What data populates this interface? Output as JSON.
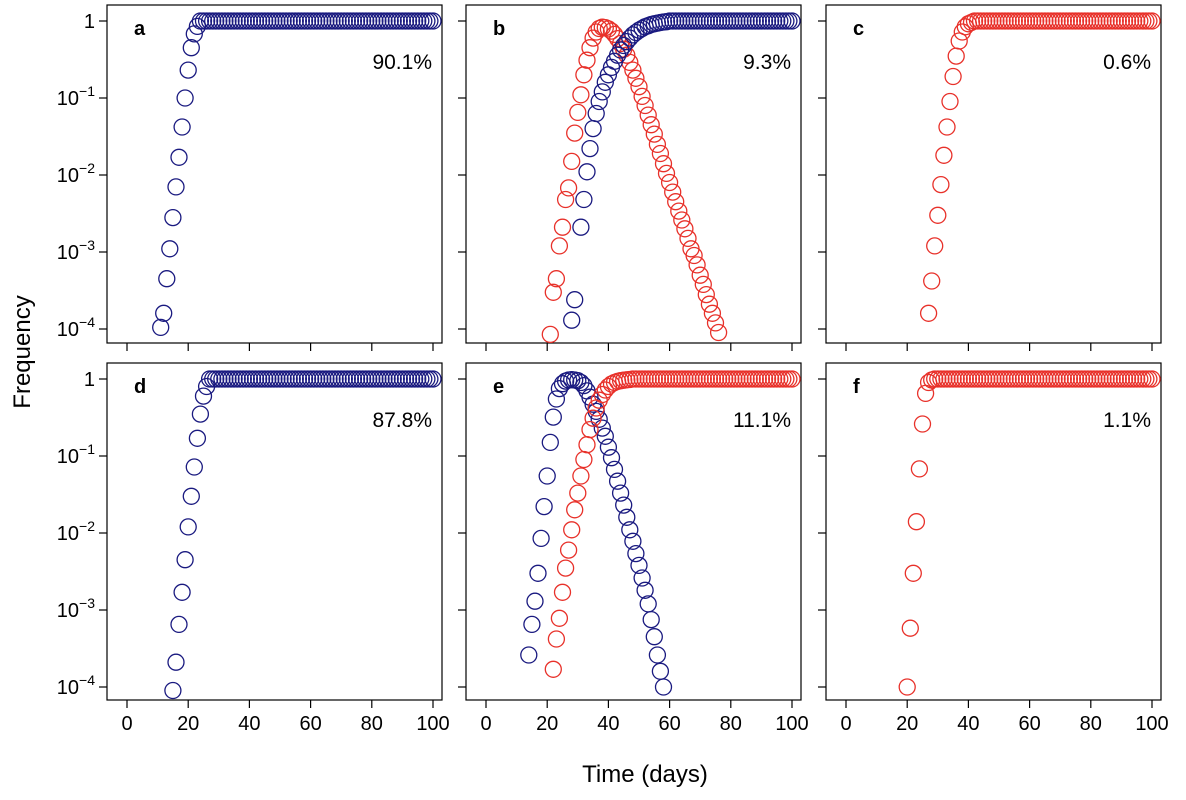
{
  "figure": {
    "xlabel": "Time (days)",
    "ylabel": "Frequency",
    "ytick_labels": [
      {
        "base": "1",
        "exp": ""
      },
      {
        "base": "10",
        "exp": "−1"
      },
      {
        "base": "10",
        "exp": "−2"
      },
      {
        "base": "10",
        "exp": "−3"
      },
      {
        "base": "10",
        "exp": "−4"
      }
    ],
    "xtick_labels": [
      "0",
      "20",
      "40",
      "60",
      "80",
      "100"
    ],
    "colors": {
      "blue": "#1a1a80",
      "red": "#e8312a"
    }
  },
  "chart_data": [
    {
      "type": "scatter",
      "panel": "a",
      "annotation": "90.1%",
      "yscale": "log",
      "xlim": [
        0,
        100
      ],
      "ylim": [
        0.0001,
        1
      ],
      "grid": false,
      "series": [
        {
          "color": "#1a1a80",
          "points": [
            [
              11,
              0.000105
            ],
            [
              12,
              0.00016
            ],
            [
              13,
              0.00045
            ],
            [
              14,
              0.0011
            ],
            [
              15,
              0.0028
            ],
            [
              16,
              0.007
            ],
            [
              17,
              0.017
            ],
            [
              18,
              0.042
            ],
            [
              19,
              0.1
            ],
            [
              20,
              0.23
            ],
            [
              21,
              0.45
            ],
            [
              22,
              0.68
            ],
            [
              23,
              0.85
            ]
          ],
          "plateau": {
            "from": 24,
            "to": 100,
            "value": 1
          }
        }
      ]
    },
    {
      "type": "scatter",
      "panel": "b",
      "annotation": "9.3%",
      "yscale": "log",
      "xlim": [
        0,
        100
      ],
      "ylim": [
        0.0001,
        1
      ],
      "grid": false,
      "series": [
        {
          "color": "#e8312a",
          "points": [
            [
              21,
              8.5e-05
            ],
            [
              22,
              0.0003
            ],
            [
              23,
              0.00045
            ],
            [
              24,
              0.0012
            ],
            [
              25,
              0.0021
            ],
            [
              26,
              0.0048
            ],
            [
              27,
              0.0068
            ],
            [
              28,
              0.015
            ],
            [
              29,
              0.035
            ],
            [
              30,
              0.065
            ],
            [
              31,
              0.11
            ],
            [
              32,
              0.2
            ],
            [
              33,
              0.31
            ],
            [
              34,
              0.45
            ],
            [
              35,
              0.6
            ],
            [
              36,
              0.72
            ],
            [
              37,
              0.8
            ],
            [
              38,
              0.83
            ],
            [
              39,
              0.82
            ],
            [
              40,
              0.79
            ],
            [
              41,
              0.74
            ],
            [
              42,
              0.67
            ],
            [
              43,
              0.59
            ],
            [
              44,
              0.51
            ],
            [
              45,
              0.43
            ],
            [
              46,
              0.36
            ],
            [
              47,
              0.29
            ],
            [
              48,
              0.23
            ],
            [
              49,
              0.18
            ],
            [
              50,
              0.14
            ],
            [
              51,
              0.105
            ],
            [
              52,
              0.08
            ],
            [
              53,
              0.06
            ],
            [
              54,
              0.045
            ],
            [
              55,
              0.034
            ],
            [
              56,
              0.025
            ],
            [
              57,
              0.019
            ],
            [
              58,
              0.014
            ],
            [
              59,
              0.0105
            ],
            [
              60,
              0.008
            ],
            [
              61,
              0.006
            ],
            [
              62,
              0.0045
            ],
            [
              63,
              0.0034
            ],
            [
              64,
              0.0026
            ],
            [
              65,
              0.002
            ],
            [
              66,
              0.0015
            ],
            [
              67,
              0.0011
            ],
            [
              68,
              0.0009
            ],
            [
              69,
              0.00068
            ],
            [
              70,
              0.0005
            ],
            [
              71,
              0.00038
            ],
            [
              72,
              0.00028
            ],
            [
              73,
              0.00021
            ],
            [
              74,
              0.00016
            ],
            [
              75,
              0.00012
            ],
            [
              76,
              9e-05
            ]
          ]
        },
        {
          "color": "#1a1a80",
          "points": [
            [
              28,
              0.00013
            ],
            [
              29,
              0.00024
            ],
            [
              31,
              0.0021
            ],
            [
              32,
              0.0048
            ],
            [
              33,
              0.011
            ],
            [
              34,
              0.022
            ],
            [
              35,
              0.04
            ],
            [
              36,
              0.063
            ],
            [
              37,
              0.09
            ],
            [
              38,
              0.12
            ],
            [
              39,
              0.16
            ],
            [
              40,
              0.2
            ],
            [
              41,
              0.25
            ],
            [
              42,
              0.3
            ],
            [
              43,
              0.36
            ],
            [
              44,
              0.42
            ],
            [
              45,
              0.48
            ],
            [
              46,
              0.54
            ],
            [
              47,
              0.6
            ],
            [
              48,
              0.66
            ],
            [
              49,
              0.71
            ],
            [
              50,
              0.76
            ],
            [
              51,
              0.8
            ],
            [
              52,
              0.84
            ],
            [
              53,
              0.87
            ],
            [
              54,
              0.9
            ],
            [
              55,
              0.92
            ],
            [
              56,
              0.94
            ],
            [
              57,
              0.955
            ],
            [
              58,
              0.97
            ],
            [
              59,
              0.98
            ]
          ],
          "plateau": {
            "from": 60,
            "to": 100,
            "value": 1
          }
        }
      ]
    },
    {
      "type": "scatter",
      "panel": "c",
      "annotation": "0.6%",
      "yscale": "log",
      "xlim": [
        0,
        100
      ],
      "ylim": [
        0.0001,
        1
      ],
      "grid": false,
      "series": [
        {
          "color": "#e8312a",
          "points": [
            [
              27,
              0.00016
            ],
            [
              28,
              0.00042
            ],
            [
              29,
              0.0012
            ],
            [
              30,
              0.003
            ],
            [
              31,
              0.0075
            ],
            [
              32,
              0.018
            ],
            [
              33,
              0.042
            ],
            [
              34,
              0.09
            ],
            [
              35,
              0.19
            ],
            [
              36,
              0.35
            ],
            [
              37,
              0.55
            ],
            [
              38,
              0.72
            ],
            [
              39,
              0.84
            ],
            [
              40,
              0.92
            ],
            [
              41,
              0.96
            ]
          ],
          "plateau": {
            "from": 42,
            "to": 100,
            "value": 1
          }
        }
      ]
    },
    {
      "type": "scatter",
      "panel": "d",
      "annotation": "87.8%",
      "yscale": "log",
      "xlim": [
        0,
        100
      ],
      "ylim": [
        0.0001,
        1
      ],
      "grid": false,
      "series": [
        {
          "color": "#1a1a80",
          "points": [
            [
              15,
              9e-05
            ],
            [
              16,
              0.00021
            ],
            [
              17,
              0.00065
            ],
            [
              18,
              0.0017
            ],
            [
              19,
              0.0045
            ],
            [
              20,
              0.012
            ],
            [
              21,
              0.03
            ],
            [
              22,
              0.072
            ],
            [
              23,
              0.17
            ],
            [
              24,
              0.35
            ],
            [
              25,
              0.6
            ],
            [
              26,
              0.8
            ]
          ],
          "plateau": {
            "from": 27,
            "to": 100,
            "value": 1
          }
        }
      ]
    },
    {
      "type": "scatter",
      "panel": "e",
      "annotation": "11.1%",
      "yscale": "log",
      "xlim": [
        0,
        100
      ],
      "ylim": [
        0.0001,
        1
      ],
      "grid": false,
      "series": [
        {
          "color": "#1a1a80",
          "points": [
            [
              14,
              0.00026
            ],
            [
              15,
              0.00065
            ],
            [
              16,
              0.0013
            ],
            [
              17,
              0.003
            ],
            [
              18,
              0.0085
            ],
            [
              19,
              0.022
            ],
            [
              20,
              0.055
            ],
            [
              21,
              0.15
            ],
            [
              22,
              0.32
            ],
            [
              23,
              0.55
            ],
            [
              24,
              0.75
            ],
            [
              25,
              0.87
            ],
            [
              26,
              0.94
            ],
            [
              27,
              0.97
            ],
            [
              28,
              0.98
            ],
            [
              29,
              0.97
            ],
            [
              30,
              0.95
            ],
            [
              31,
              0.9
            ],
            [
              32,
              0.82
            ],
            [
              33,
              0.7
            ],
            [
              34,
              0.58
            ],
            [
              35,
              0.47
            ],
            [
              36,
              0.38
            ],
            [
              37,
              0.3
            ],
            [
              38,
              0.23
            ],
            [
              39,
              0.18
            ],
            [
              40,
              0.13
            ],
            [
              41,
              0.095
            ],
            [
              42,
              0.067
            ],
            [
              43,
              0.047
            ],
            [
              44,
              0.033
            ],
            [
              45,
              0.023
            ],
            [
              46,
              0.016
            ],
            [
              47,
              0.011
            ],
            [
              48,
              0.0078
            ],
            [
              49,
              0.0054
            ],
            [
              50,
              0.0038
            ],
            [
              51,
              0.0026
            ],
            [
              52,
              0.0018
            ],
            [
              53,
              0.0012
            ],
            [
              54,
              0.00075
            ],
            [
              55,
              0.00045
            ],
            [
              56,
              0.00026
            ],
            [
              57,
              0.00016
            ],
            [
              58,
              0.0001
            ]
          ]
        },
        {
          "color": "#e8312a",
          "points": [
            [
              22,
              0.00017
            ],
            [
              23,
              0.00042
            ],
            [
              24,
              0.00078
            ],
            [
              25,
              0.0017
            ],
            [
              26,
              0.0035
            ],
            [
              27,
              0.006
            ],
            [
              28,
              0.011
            ],
            [
              29,
              0.02
            ],
            [
              30,
              0.033
            ],
            [
              31,
              0.055
            ],
            [
              32,
              0.09
            ],
            [
              33,
              0.14
            ],
            [
              34,
              0.22
            ],
            [
              35,
              0.31
            ],
            [
              36,
              0.42
            ],
            [
              37,
              0.53
            ],
            [
              38,
              0.63
            ],
            [
              39,
              0.72
            ],
            [
              40,
              0.8
            ],
            [
              41,
              0.86
            ],
            [
              42,
              0.9
            ],
            [
              43,
              0.93
            ],
            [
              44,
              0.95
            ],
            [
              45,
              0.965
            ],
            [
              46,
              0.975
            ],
            [
              47,
              0.985
            ]
          ],
          "plateau": {
            "from": 48,
            "to": 100,
            "value": 1
          }
        }
      ]
    },
    {
      "type": "scatter",
      "panel": "f",
      "annotation": "1.1%",
      "yscale": "log",
      "xlim": [
        0,
        100
      ],
      "ylim": [
        0.0001,
        1
      ],
      "grid": false,
      "series": [
        {
          "color": "#e8312a",
          "points": [
            [
              20,
              0.0001
            ],
            [
              21,
              0.00058
            ],
            [
              22,
              0.003
            ],
            [
              23,
              0.014
            ],
            [
              24,
              0.068
            ],
            [
              25,
              0.26
            ],
            [
              26,
              0.65
            ],
            [
              27,
              0.9
            ],
            [
              28,
              0.97
            ]
          ],
          "plateau": {
            "from": 29,
            "to": 100,
            "value": 1
          }
        }
      ]
    }
  ]
}
